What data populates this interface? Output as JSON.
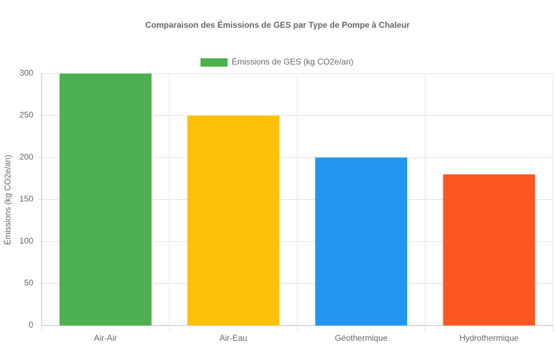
{
  "chart_data": {
    "type": "bar",
    "title": "Comparaison des Émissions de GES par Type de Pompe à Chaleur",
    "categories": [
      "Air-Air",
      "Air-Eau",
      "Géothermique",
      "Hydrothermique"
    ],
    "series": [
      {
        "name": "Émissions de GES (kg CO2e/an)",
        "color": "#4caf50",
        "colors": [
          "#4caf50",
          "#ffc107",
          "#2196f3",
          "#ff5722"
        ],
        "values": [
          300,
          250,
          200,
          180
        ]
      }
    ],
    "ylabel": "Émissions (kg CO2e/an)",
    "ylim": [
      0,
      300
    ],
    "yticks": [
      0,
      50,
      100,
      150,
      200,
      250,
      300
    ],
    "grid": true
  }
}
